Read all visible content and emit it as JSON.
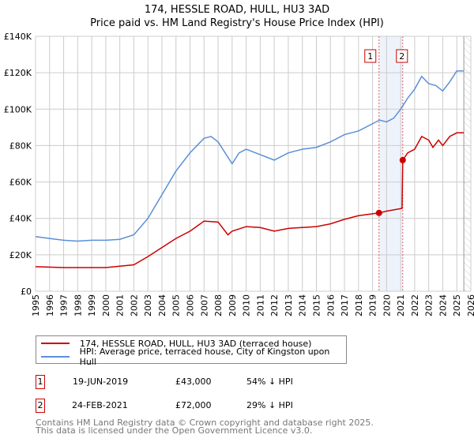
{
  "chart_data": {
    "type": "line",
    "title": "174, HESSLE ROAD, HULL, HU3 3AD",
    "subtitle": "Price paid vs. HM Land Registry's House Price Index (HPI)",
    "xlim": [
      1995,
      2026
    ],
    "ylim": [
      0,
      140000
    ],
    "x_ticks": [
      "1995",
      "1996",
      "1997",
      "1998",
      "1999",
      "2000",
      "2001",
      "2002",
      "2003",
      "2004",
      "2005",
      "2006",
      "2007",
      "2008",
      "2009",
      "2010",
      "2011",
      "2012",
      "2013",
      "2014",
      "2015",
      "2016",
      "2017",
      "2018",
      "2019",
      "2020",
      "2021",
      "2022",
      "2023",
      "2024",
      "2025",
      "2026"
    ],
    "y_ticks": [
      {
        "v": 0,
        "label": "£0"
      },
      {
        "v": 20000,
        "label": "£20K"
      },
      {
        "v": 40000,
        "label": "£40K"
      },
      {
        "v": 60000,
        "label": "£60K"
      },
      {
        "v": 80000,
        "label": "£80K"
      },
      {
        "v": 100000,
        "label": "£100K"
      },
      {
        "v": 120000,
        "label": "£120K"
      },
      {
        "v": 140000,
        "label": "£140K"
      }
    ],
    "grid": true,
    "series": [
      {
        "name": "174, HESSLE ROAD, HULL, HU3 3AD (terraced house)",
        "color": "#cc0000",
        "x": [
          1995,
          1997,
          2000,
          2002,
          2003,
          2004,
          2005,
          2006,
          2007,
          2008,
          2008.7,
          2009,
          2010,
          2011,
          2012,
          2013,
          2014,
          2015,
          2016,
          2017,
          2018,
          2019.46,
          2020,
          2021.1,
          2021.15,
          2021.5,
          2022,
          2022.5,
          2023,
          2023.3,
          2023.7,
          2024,
          2024.5,
          2025,
          2025.5
        ],
        "y": [
          13500,
          13000,
          13000,
          14500,
          19000,
          24000,
          29000,
          33000,
          38500,
          38000,
          31000,
          33000,
          35500,
          35000,
          33000,
          34500,
          35000,
          35500,
          37000,
          39500,
          41500,
          43000,
          44000,
          45500,
          72000,
          76000,
          78000,
          85000,
          83000,
          79000,
          83000,
          80000,
          85000,
          87000,
          87000
        ]
      },
      {
        "name": "HPI: Average price, terraced house, City of Kingston upon Hull",
        "color": "#5b8fd6",
        "x": [
          1995,
          1996,
          1997,
          1998,
          1999,
          2000,
          2001,
          2002,
          2003,
          2004,
          2005,
          2006,
          2007,
          2007.5,
          2008,
          2009,
          2009.5,
          2010,
          2011,
          2012,
          2013,
          2014,
          2015,
          2016,
          2017,
          2018,
          2019,
          2019.5,
          2020,
          2020.5,
          2021,
          2021.5,
          2022,
          2022.5,
          2023,
          2023.5,
          2024,
          2024.5,
          2025,
          2025.5
        ],
        "y": [
          30000,
          29000,
          28000,
          27500,
          28000,
          28000,
          28500,
          31000,
          40000,
          53000,
          66000,
          76000,
          84000,
          85000,
          82000,
          70000,
          76000,
          78000,
          75000,
          72000,
          76000,
          78000,
          79000,
          82000,
          86000,
          88000,
          92000,
          94000,
          93000,
          95000,
          100000,
          106000,
          111000,
          118000,
          114000,
          113000,
          110000,
          115000,
          121000,
          121000
        ]
      }
    ],
    "transactions": [
      {
        "id": "1",
        "date": "19-JUN-2019",
        "x": 2019.46,
        "price": "£43,000",
        "value": 43000,
        "hpi": "54% ↓ HPI"
      },
      {
        "id": "2",
        "date": "24-FEB-2021",
        "x": 2021.15,
        "price": "£72,000",
        "value": 72000,
        "hpi": "29% ↓ HPI"
      }
    ],
    "forecast_start": 2025.5
  },
  "footer": {
    "line1": "Contains HM Land Registry data © Crown copyright and database right 2025.",
    "line2": "This data is licensed under the Open Government Licence v3.0."
  }
}
